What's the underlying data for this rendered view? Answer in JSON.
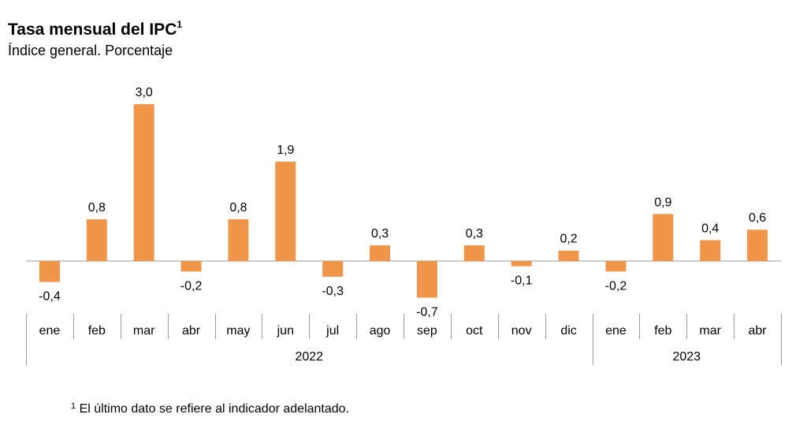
{
  "title": "Tasa mensual del IPC",
  "title_superscript": "1",
  "subtitle": "Índice general. Porcentaje",
  "footnote_marker": "1",
  "footnote_text": "El último dato se refiere al indicador adelantado.",
  "chart_data": {
    "type": "bar",
    "categories": [
      "ene",
      "feb",
      "mar",
      "abr",
      "may",
      "jun",
      "jul",
      "ago",
      "sep",
      "oct",
      "nov",
      "dic",
      "ene",
      "feb",
      "mar",
      "abr"
    ],
    "years": [
      {
        "label": "2022",
        "from": 0,
        "to": 11
      },
      {
        "label": "2023",
        "from": 12,
        "to": 15
      }
    ],
    "values": [
      -0.4,
      0.8,
      3.0,
      -0.2,
      0.8,
      1.9,
      -0.3,
      0.3,
      -0.7,
      0.3,
      -0.1,
      0.2,
      -0.2,
      0.9,
      0.4,
      0.6
    ],
    "value_labels": [
      "-0,4",
      "0,8",
      "3,0",
      "-0,2",
      "0,8",
      "1,9",
      "-0,3",
      "0,3",
      "-0,7",
      "0,3",
      "-0,1",
      "0,2",
      "-0,2",
      "0,9",
      "0,4",
      "0,6"
    ],
    "bar_color": "#F0964A",
    "ylim": [
      -0.7,
      3.0
    ],
    "grid": false
  }
}
